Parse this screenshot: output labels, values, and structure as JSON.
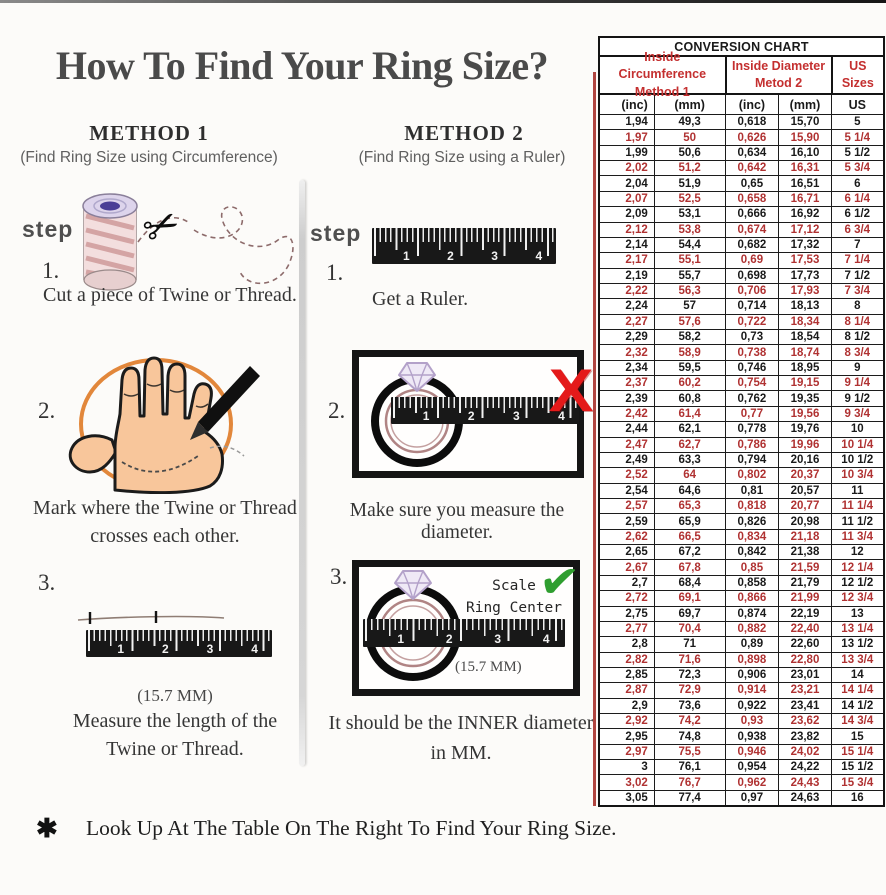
{
  "title": "How To Find Your Ring Size?",
  "methods": {
    "method1": {
      "heading": "METHOD 1",
      "subheading": "(Find Ring Size using Circumference)",
      "step_label": "step",
      "step1": {
        "num": "1.",
        "caption": "Cut a piece of Twine or Thread."
      },
      "step2": {
        "num": "2.",
        "caption_line1": "Mark where the Twine or Thread",
        "caption_line2": "crosses each other."
      },
      "step3": {
        "num": "3.",
        "measurement": "(15.7 MM)",
        "caption_line1": "Measure the length of the",
        "caption_line2": "Twine or Thread."
      }
    },
    "method2": {
      "heading": "METHOD 2",
      "subheading": "(Find Ring Size using a Ruler)",
      "step_label": "step",
      "step1": {
        "num": "1.",
        "caption": "Get a Ruler."
      },
      "step2": {
        "num": "2.",
        "caption": "Make sure you measure the diameter."
      },
      "step3": {
        "num": "3.",
        "scale_note_line1": "Scale",
        "scale_note_line2": "Ring Center",
        "measurement": "(15.7 MM)",
        "caption_line1": "It should be the INNER diameter",
        "caption_line2": "in MM."
      }
    }
  },
  "ruler_numbers": [
    "1",
    "2",
    "3",
    "4"
  ],
  "marks": {
    "wrong": "X",
    "correct": "✔",
    "bullet": "✱"
  },
  "footnote": {
    "text": "Look Up At The Table On The Right To Find Your Ring Size."
  },
  "conversion_table": {
    "title": "CONVERSION CHART",
    "column_groups": [
      {
        "line1": "Inside Circumference",
        "line2": "Method 1"
      },
      {
        "line1": "Inside Diameter",
        "line2": "Metod 2"
      },
      {
        "line1": "US Sizes",
        "line2": ""
      }
    ],
    "sub_headers": [
      "(inc)",
      "(mm)",
      "(inc)",
      "(mm)",
      "US"
    ],
    "rows": [
      [
        "1,94",
        "49,3",
        "0,618",
        "15,70",
        "5"
      ],
      [
        "1,97",
        "50",
        "0,626",
        "15,90",
        "5 1/4"
      ],
      [
        "1,99",
        "50,6",
        "0,634",
        "16,10",
        "5 1/2"
      ],
      [
        "2,02",
        "51,2",
        "0,642",
        "16,31",
        "5 3/4"
      ],
      [
        "2,04",
        "51,9",
        "0,65",
        "16,51",
        "6"
      ],
      [
        "2,07",
        "52,5",
        "0,658",
        "16,71",
        "6 1/4"
      ],
      [
        "2,09",
        "53,1",
        "0,666",
        "16,92",
        "6 1/2"
      ],
      [
        "2,12",
        "53,8",
        "0,674",
        "17,12",
        "6 3/4"
      ],
      [
        "2,14",
        "54,4",
        "0,682",
        "17,32",
        "7"
      ],
      [
        "2,17",
        "55,1",
        "0,69",
        "17,53",
        "7 1/4"
      ],
      [
        "2,19",
        "55,7",
        "0,698",
        "17,73",
        "7 1/2"
      ],
      [
        "2,22",
        "56,3",
        "0,706",
        "17,93",
        "7 3/4"
      ],
      [
        "2,24",
        "57",
        "0,714",
        "18,13",
        "8"
      ],
      [
        "2,27",
        "57,6",
        "0,722",
        "18,34",
        "8 1/4"
      ],
      [
        "2,29",
        "58,2",
        "0,73",
        "18,54",
        "8 1/2"
      ],
      [
        "2,32",
        "58,9",
        "0,738",
        "18,74",
        "8 3/4"
      ],
      [
        "2,34",
        "59,5",
        "0,746",
        "18,95",
        "9"
      ],
      [
        "2,37",
        "60,2",
        "0,754",
        "19,15",
        "9 1/4"
      ],
      [
        "2,39",
        "60,8",
        "0,762",
        "19,35",
        "9 1/2"
      ],
      [
        "2,42",
        "61,4",
        "0,77",
        "19,56",
        "9 3/4"
      ],
      [
        "2,44",
        "62,1",
        "0,778",
        "19,76",
        "10"
      ],
      [
        "2,47",
        "62,7",
        "0,786",
        "19,96",
        "10 1/4"
      ],
      [
        "2,49",
        "63,3",
        "0,794",
        "20,16",
        "10 1/2"
      ],
      [
        "2,52",
        "64",
        "0,802",
        "20,37",
        "10 3/4"
      ],
      [
        "2,54",
        "64,6",
        "0,81",
        "20,57",
        "11"
      ],
      [
        "2,57",
        "65,3",
        "0,818",
        "20,77",
        "11 1/4"
      ],
      [
        "2,59",
        "65,9",
        "0,826",
        "20,98",
        "11 1/2"
      ],
      [
        "2,62",
        "66,5",
        "0,834",
        "21,18",
        "11 3/4"
      ],
      [
        "2,65",
        "67,2",
        "0,842",
        "21,38",
        "12"
      ],
      [
        "2,67",
        "67,8",
        "0,85",
        "21,59",
        "12 1/4"
      ],
      [
        "2,7",
        "68,4",
        "0,858",
        "21,79",
        "12 1/2"
      ],
      [
        "2,72",
        "69,1",
        "0,866",
        "21,99",
        "12 3/4"
      ],
      [
        "2,75",
        "69,7",
        "0,874",
        "22,19",
        "13"
      ],
      [
        "2,77",
        "70,4",
        "0,882",
        "22,40",
        "13 1/4"
      ],
      [
        "2,8",
        "71",
        "0,89",
        "22,60",
        "13 1/2"
      ],
      [
        "2,82",
        "71,6",
        "0,898",
        "22,80",
        "13 3/4"
      ],
      [
        "2,85",
        "72,3",
        "0,906",
        "23,01",
        "14"
      ],
      [
        "2,87",
        "72,9",
        "0,914",
        "23,21",
        "14 1/4"
      ],
      [
        "2,9",
        "73,6",
        "0,922",
        "23,41",
        "14 1/2"
      ],
      [
        "2,92",
        "74,2",
        "0,93",
        "23,62",
        "14 3/4"
      ],
      [
        "2,95",
        "74,8",
        "0,938",
        "23,82",
        "15"
      ],
      [
        "2,97",
        "75,5",
        "0,946",
        "24,02",
        "15 1/4"
      ],
      [
        "3",
        "76,1",
        "0,954",
        "24,22",
        "15 1/2"
      ],
      [
        "3,02",
        "76,7",
        "0,962",
        "24,43",
        "15 3/4"
      ],
      [
        "3,05",
        "77,4",
        "0,97",
        "24,63",
        "16"
      ]
    ]
  },
  "colors": {
    "table_red": "#b03232",
    "header_red": "#c42f2f",
    "x_red": "#e41a1a",
    "check_green": "#2f9e2f",
    "circle_orange": "#e2873b",
    "skin": "#f8c69b",
    "ruler_black": "#181818",
    "accent_line": "#b04540"
  }
}
